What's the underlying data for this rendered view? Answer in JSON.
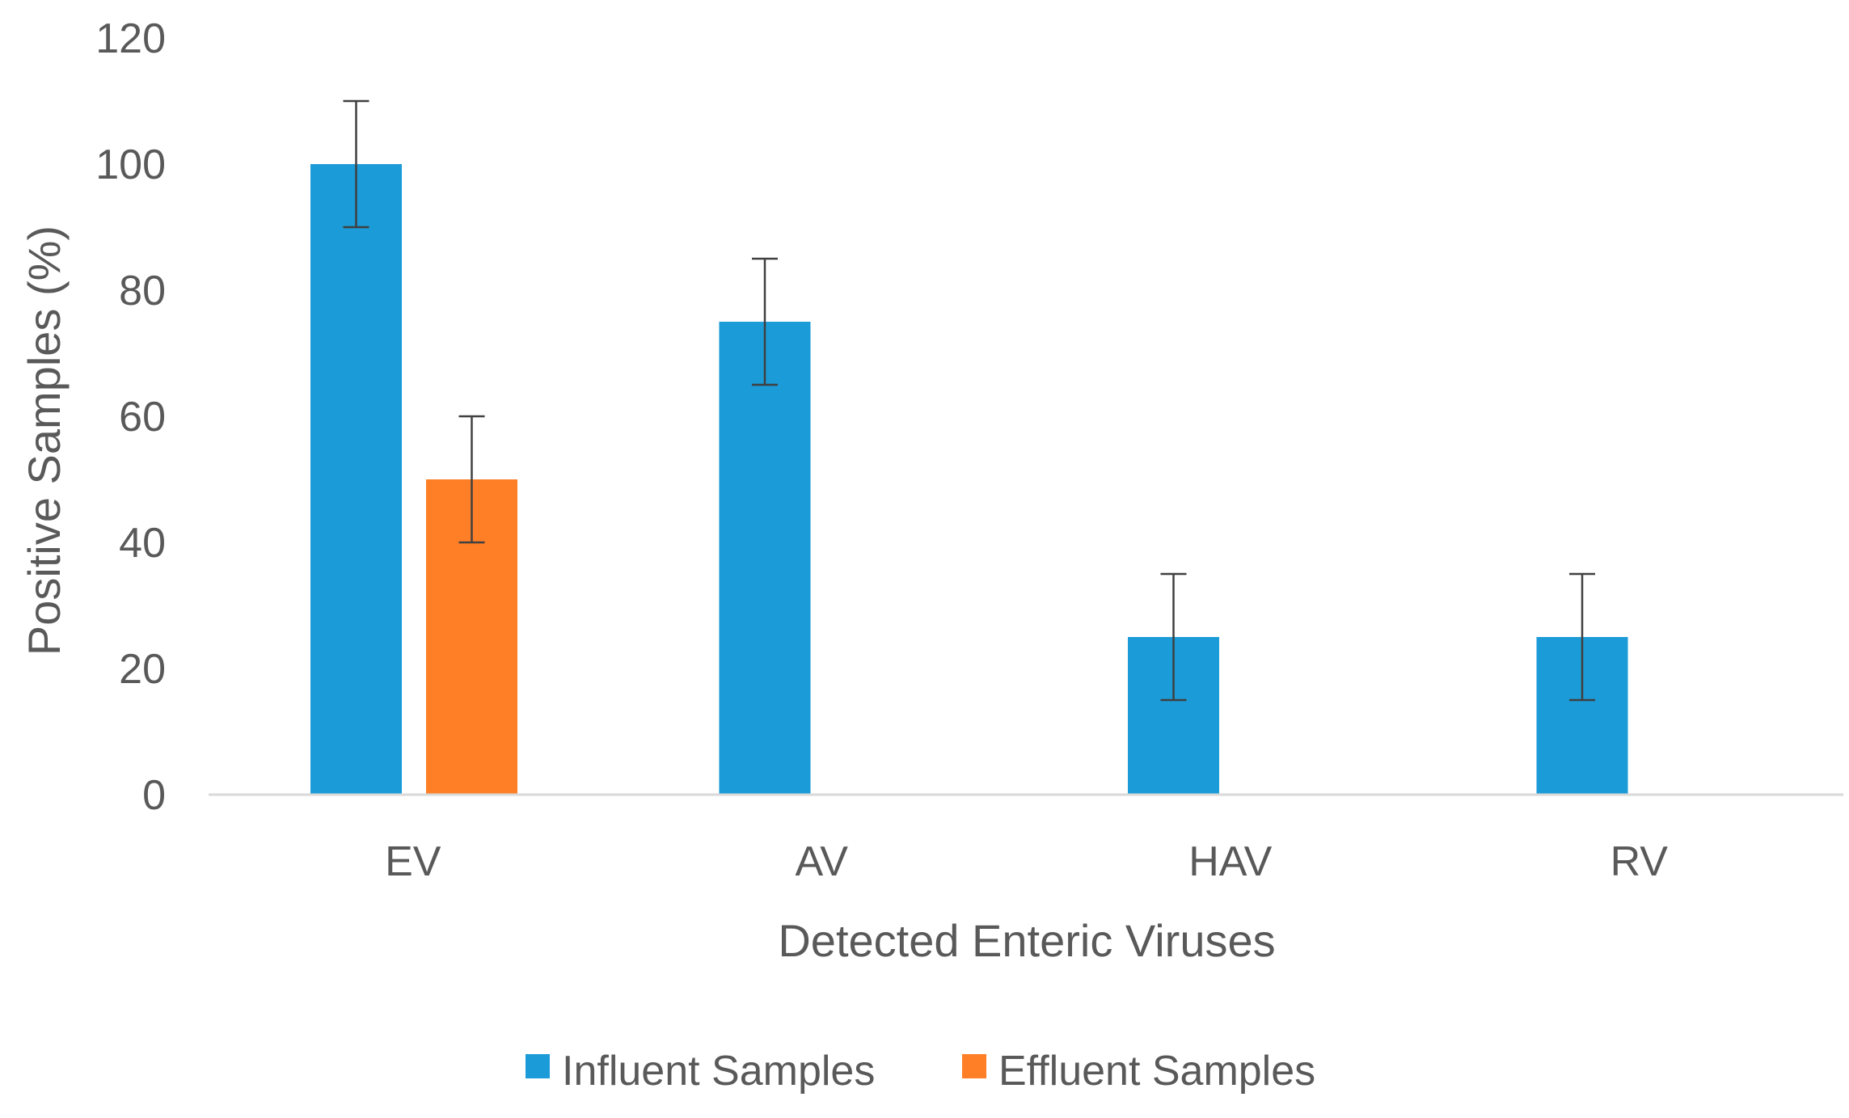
{
  "chart_data": {
    "type": "bar",
    "title": "",
    "xlabel": "Detected Enteric Viruses",
    "ylabel": "Positive Samples (%)",
    "ylim": [
      0,
      120
    ],
    "yticks": [
      0,
      20,
      40,
      60,
      80,
      100,
      120
    ],
    "ytick_labels": [
      "0",
      "20",
      "40",
      "60",
      "80",
      "100",
      "120"
    ],
    "grid": false,
    "legend_position": "bottom",
    "categories": [
      "EV",
      "AV",
      "HAV",
      "RV"
    ],
    "series": [
      {
        "name": "Influent Samples",
        "color": "#1b9bd7",
        "values": [
          100,
          75,
          25,
          25
        ],
        "error": [
          10,
          10,
          10,
          10
        ]
      },
      {
        "name": "Effluent Samples",
        "color": "#ff7f27",
        "values": [
          50,
          null,
          null,
          null
        ],
        "error": [
          10,
          null,
          null,
          null
        ]
      }
    ]
  }
}
